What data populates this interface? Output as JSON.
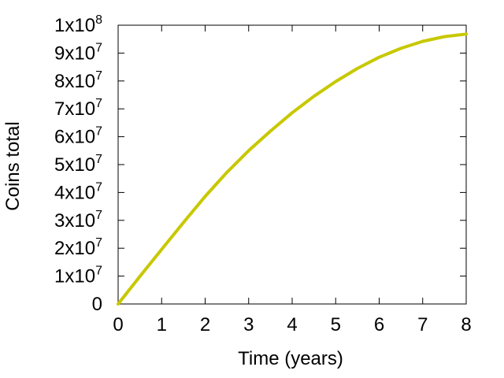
{
  "chart_data": {
    "type": "line",
    "title": "",
    "xlabel": "Time (years)",
    "ylabel": "Coins total",
    "xlim": [
      0,
      8
    ],
    "ylim": [
      0,
      100000000
    ],
    "x_ticks": [
      {
        "value": 0,
        "label": "0"
      },
      {
        "value": 1,
        "label": "1"
      },
      {
        "value": 2,
        "label": "2"
      },
      {
        "value": 3,
        "label": "3"
      },
      {
        "value": 4,
        "label": "4"
      },
      {
        "value": 5,
        "label": "5"
      },
      {
        "value": 6,
        "label": "6"
      },
      {
        "value": 7,
        "label": "7"
      },
      {
        "value": 8,
        "label": "8"
      }
    ],
    "y_ticks": [
      {
        "value": 0,
        "mantissa": "0",
        "exp": ""
      },
      {
        "value": 10000000,
        "mantissa": "1x10",
        "exp": "7"
      },
      {
        "value": 20000000,
        "mantissa": "2x10",
        "exp": "7"
      },
      {
        "value": 30000000,
        "mantissa": "3x10",
        "exp": "7"
      },
      {
        "value": 40000000,
        "mantissa": "4x10",
        "exp": "7"
      },
      {
        "value": 50000000,
        "mantissa": "5x10",
        "exp": "7"
      },
      {
        "value": 60000000,
        "mantissa": "6x10",
        "exp": "7"
      },
      {
        "value": 70000000,
        "mantissa": "7x10",
        "exp": "7"
      },
      {
        "value": 80000000,
        "mantissa": "8x10",
        "exp": "7"
      },
      {
        "value": 90000000,
        "mantissa": "9x10",
        "exp": "7"
      },
      {
        "value": 100000000,
        "mantissa": "1x10",
        "exp": "8"
      }
    ],
    "grid": false,
    "legend": "none",
    "series": [
      {
        "color": "#c8c800",
        "x": [
          0,
          0.5,
          1,
          1.5,
          2,
          2.5,
          3,
          3.5,
          4,
          4.5,
          5,
          5.5,
          6,
          6.5,
          7,
          7.5,
          8
        ],
        "y": [
          0,
          9900000,
          19600000,
          29200000,
          38600000,
          47200000,
          55000000,
          62000000,
          68600000,
          74500000,
          79800000,
          84500000,
          88500000,
          91700000,
          94200000,
          95900000,
          96800000
        ]
      }
    ]
  }
}
